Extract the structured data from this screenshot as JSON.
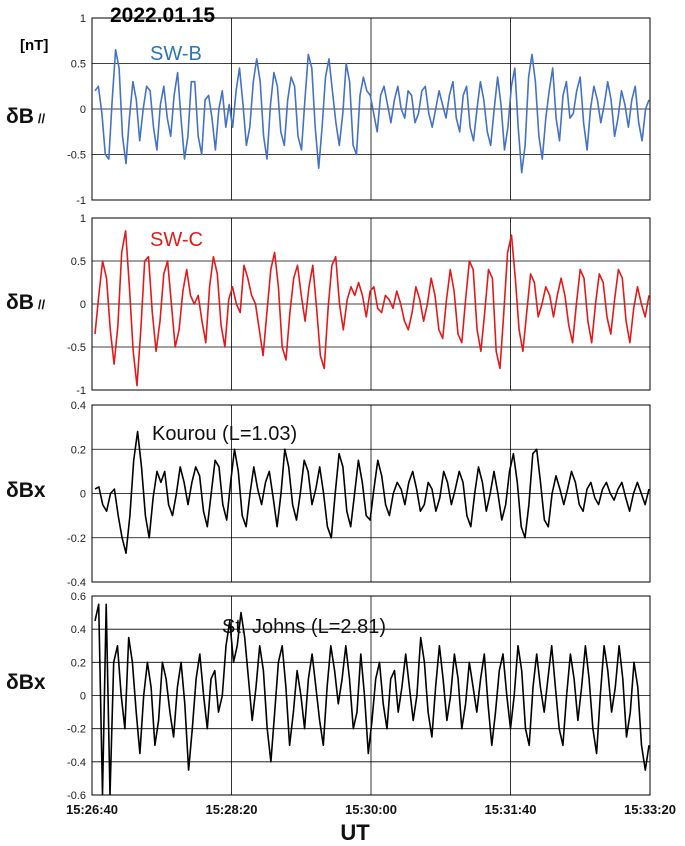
{
  "title": "2022.01.15",
  "unit_label": "[nT]",
  "xlabel": "UT",
  "x_ticks": [
    "15:26:40",
    "15:28:20",
    "15:30:00",
    "15:31:40",
    "15:33:20"
  ],
  "colors": {
    "swb": "#4472c4",
    "swc": "#e31a1c",
    "ground": "#000000",
    "swb_label": "#2e75b6"
  },
  "chart_data": [
    {
      "type": "line",
      "annotation": "SW-B",
      "ylabel": "δB",
      "ylabel_sub": "//",
      "ylim": [
        -1,
        1
      ],
      "y_ticks": [
        "1",
        "0.5",
        "0",
        "-0.5",
        "-1"
      ],
      "grid": true,
      "x_range": [
        "15:26:40",
        "15:33:20"
      ],
      "series": [
        {
          "values": [
            0.2,
            0.25,
            -0.05,
            -0.5,
            -0.55,
            0.1,
            0.65,
            0.45,
            -0.3,
            -0.6,
            -0.1,
            0.3,
            0.1,
            -0.35,
            0.0,
            0.25,
            0.2,
            -0.2,
            -0.45,
            0.05,
            0.25,
            -0.1,
            -0.3,
            0.15,
            0.4,
            -0.1,
            -0.55,
            -0.3,
            0.3,
            0.3,
            -0.3,
            -0.5,
            0.1,
            0.15,
            -0.1,
            -0.45,
            0.0,
            0.2,
            -0.2,
            0.05,
            -0.2,
            0.2,
            0.45,
            0.05,
            -0.4,
            -0.2,
            0.3,
            0.55,
            0.3,
            -0.3,
            -0.55,
            0.05,
            0.4,
            0.25,
            -0.25,
            -0.4,
            0.1,
            0.35,
            0.25,
            -0.3,
            -0.45,
            0.1,
            0.6,
            0.45,
            -0.2,
            -0.65,
            -0.2,
            0.35,
            0.55,
            0.2,
            -0.15,
            -0.4,
            -0.05,
            0.5,
            0.3,
            -0.4,
            -0.5,
            0.15,
            0.35,
            0.2,
            0.15,
            -0.05,
            -0.25,
            0.15,
            0.25,
            0.05,
            -0.15,
            0.1,
            0.25,
            0.0,
            -0.1,
            0.2,
            0.15,
            -0.15,
            -0.05,
            0.2,
            0.25,
            -0.05,
            -0.2,
            0.0,
            0.2,
            0.05,
            -0.1,
            0.15,
            0.3,
            -0.1,
            -0.25,
            0.15,
            0.25,
            -0.2,
            -0.35,
            0.0,
            0.3,
            0.1,
            -0.25,
            -0.4,
            0.0,
            0.35,
            0.05,
            -0.45,
            -0.2,
            0.25,
            0.45,
            -0.2,
            -0.7,
            -0.4,
            0.35,
            0.6,
            0.3,
            -0.3,
            -0.55,
            -0.1,
            0.2,
            0.45,
            -0.1,
            -0.35,
            0.15,
            0.3,
            -0.1,
            -0.05,
            0.2,
            0.35,
            -0.15,
            -0.45,
            0.0,
            0.25,
            0.1,
            -0.15,
            0.05,
            0.3,
            0.1,
            -0.3,
            -0.1,
            0.2,
            0.05,
            -0.2,
            0.1,
            0.25,
            -0.15,
            -0.35,
            0.0,
            0.1
          ]
        }
      ]
    },
    {
      "type": "line",
      "annotation": "SW-C",
      "ylabel": "δB",
      "ylabel_sub": "//",
      "ylim": [
        -1,
        1
      ],
      "y_ticks": [
        "1",
        "0.5",
        "0",
        "-0.5",
        "-1"
      ],
      "grid": true,
      "x_range": [
        "15:26:40",
        "15:33:20"
      ],
      "series": [
        {
          "values": [
            -0.35,
            0.1,
            0.5,
            0.3,
            -0.3,
            -0.7,
            -0.25,
            0.6,
            0.85,
            0.2,
            -0.55,
            -0.95,
            -0.3,
            0.5,
            0.55,
            -0.1,
            -0.55,
            -0.2,
            0.35,
            0.5,
            0.0,
            -0.5,
            -0.3,
            0.15,
            0.4,
            0.1,
            0.0,
            0.1,
            -0.2,
            -0.45,
            0.2,
            0.55,
            0.35,
            -0.25,
            -0.5,
            0.05,
            0.2,
            0.0,
            -0.1,
            0.45,
            0.3,
            0.1,
            0.0,
            -0.3,
            -0.6,
            -0.1,
            0.4,
            0.6,
            0.2,
            -0.5,
            -0.65,
            -0.1,
            0.3,
            0.45,
            0.1,
            -0.2,
            0.2,
            0.45,
            -0.05,
            -0.6,
            -0.75,
            -0.05,
            0.45,
            0.55,
            0.0,
            -0.3,
            0.05,
            0.2,
            0.1,
            0.25,
            0.1,
            -0.15,
            0.15,
            0.2,
            -0.05,
            -0.1,
            0.1,
            0.05,
            -0.05,
            0.15,
            0.0,
            -0.2,
            -0.3,
            -0.1,
            0.2,
            0.05,
            -0.2,
            0.0,
            0.3,
            0.1,
            -0.3,
            -0.4,
            0.05,
            0.4,
            0.15,
            -0.35,
            -0.45,
            0.05,
            0.5,
            0.4,
            -0.3,
            -0.55,
            -0.1,
            0.4,
            0.3,
            -0.55,
            -0.75,
            -0.1,
            0.6,
            0.8,
            0.3,
            -0.3,
            -0.55,
            -0.1,
            0.35,
            0.25,
            -0.15,
            0.0,
            0.2,
            0.1,
            -0.15,
            0.1,
            0.3,
            0.1,
            -0.25,
            -0.45,
            0.0,
            0.4,
            0.3,
            -0.2,
            -0.45,
            0.0,
            0.35,
            0.25,
            -0.15,
            -0.35,
            0.05,
            0.4,
            0.3,
            -0.2,
            -0.45,
            -0.05,
            0.2,
            0.0,
            -0.15,
            0.1
          ]
        }
      ]
    },
    {
      "type": "line",
      "annotation": "Kourou  (L=1.03)",
      "ylabel": "δBx",
      "ylim": [
        -0.4,
        0.4
      ],
      "y_ticks": [
        "0.4",
        "0.2",
        "0",
        "-0.2",
        "-0.4"
      ],
      "grid": true,
      "x_range": [
        "15:26:40",
        "15:33:20"
      ],
      "series": [
        {
          "values": [
            0.02,
            0.03,
            -0.05,
            -0.08,
            0.0,
            0.02,
            -0.1,
            -0.2,
            -0.27,
            -0.1,
            0.15,
            0.28,
            0.12,
            -0.1,
            -0.2,
            -0.02,
            0.1,
            0.05,
            0.1,
            -0.05,
            -0.1,
            0.0,
            0.12,
            0.05,
            -0.05,
            0.05,
            0.12,
            0.08,
            -0.08,
            -0.15,
            0.0,
            0.15,
            0.12,
            -0.05,
            -0.12,
            0.05,
            0.2,
            0.1,
            -0.1,
            -0.15,
            0.0,
            0.12,
            0.02,
            -0.05,
            0.05,
            0.1,
            -0.02,
            -0.15,
            0.0,
            0.2,
            0.12,
            -0.05,
            -0.12,
            0.0,
            0.15,
            0.1,
            -0.05,
            0.02,
            0.12,
            0.0,
            -0.15,
            -0.2,
            0.0,
            0.18,
            0.12,
            -0.08,
            -0.15,
            0.0,
            0.15,
            0.05,
            -0.1,
            -0.12,
            0.02,
            0.15,
            0.08,
            -0.05,
            -0.1,
            0.0,
            0.05,
            0.02,
            -0.05,
            0.05,
            0.1,
            0.02,
            -0.08,
            -0.05,
            0.05,
            0.02,
            -0.08,
            -0.02,
            0.1,
            0.05,
            -0.05,
            0.02,
            0.1,
            0.05,
            -0.1,
            -0.15,
            0.0,
            0.12,
            0.05,
            -0.08,
            0.0,
            0.1,
            0.0,
            -0.12,
            -0.05,
            0.1,
            0.18,
            0.05,
            -0.15,
            -0.2,
            -0.05,
            0.18,
            0.2,
            0.05,
            -0.12,
            -0.15,
            0.0,
            0.08,
            0.02,
            -0.05,
            0.02,
            0.1,
            0.05,
            -0.05,
            -0.08,
            0.02,
            0.05,
            -0.02,
            -0.05,
            0.02,
            0.05,
            0.0,
            -0.03,
            0.02,
            0.05,
            -0.02,
            -0.08,
            0.0,
            0.05,
            0.0,
            -0.05,
            0.02
          ]
        }
      ]
    },
    {
      "type": "line",
      "annotation": "St. Johns (L=2.81)",
      "ylabel": "δBx",
      "ylim": [
        -0.6,
        0.6
      ],
      "y_ticks": [
        "0.6",
        "0.4",
        "0.2",
        "0",
        "-0.2",
        "-0.4",
        "-0.6"
      ],
      "grid": true,
      "x_range": [
        "15:26:40",
        "15:33:20"
      ],
      "series": [
        {
          "values": [
            0.45,
            0.55,
            -0.6,
            0.55,
            -0.6,
            0.2,
            0.3,
            0.0,
            -0.2,
            0.35,
            0.2,
            -0.1,
            -0.35,
            0.0,
            0.2,
            0.05,
            -0.3,
            -0.15,
            0.2,
            0.1,
            -0.1,
            -0.25,
            0.05,
            0.2,
            -0.05,
            -0.45,
            -0.2,
            0.1,
            0.25,
            0.0,
            -0.2,
            0.1,
            0.15,
            -0.1,
            0.0,
            0.3,
            0.45,
            0.2,
            0.3,
            0.5,
            0.35,
            0.1,
            -0.15,
            0.05,
            0.3,
            0.15,
            -0.2,
            -0.4,
            -0.1,
            0.2,
            0.3,
            0.05,
            -0.3,
            -0.1,
            0.15,
            0.0,
            -0.2,
            0.1,
            0.25,
            0.05,
            -0.15,
            -0.3,
            0.05,
            0.3,
            0.15,
            -0.05,
            0.1,
            0.3,
            0.1,
            -0.2,
            -0.1,
            0.25,
            0.0,
            -0.35,
            -0.15,
            0.1,
            0.2,
            -0.05,
            -0.2,
            0.1,
            0.15,
            -0.1,
            0.05,
            0.25,
            0.05,
            -0.15,
            0.0,
            0.35,
            0.2,
            -0.1,
            -0.25,
            0.05,
            0.3,
            0.1,
            -0.15,
            0.0,
            0.25,
            0.1,
            -0.2,
            -0.05,
            0.2,
            0.05,
            -0.1,
            0.1,
            0.25,
            -0.05,
            -0.3,
            -0.1,
            0.15,
            0.25,
            0.0,
            -0.2,
            0.0,
            0.3,
            0.15,
            -0.2,
            -0.3,
            0.05,
            0.25,
            0.05,
            -0.1,
            0.1,
            0.3,
            0.05,
            -0.2,
            -0.3,
            0.0,
            0.25,
            0.1,
            -0.15,
            0.05,
            0.3,
            0.1,
            -0.2,
            -0.35,
            0.0,
            0.3,
            0.15,
            -0.1,
            0.05,
            0.3,
            0.1,
            -0.25,
            -0.1,
            0.2,
            0.05,
            -0.3,
            -0.45,
            -0.3
          ]
        }
      ]
    }
  ]
}
